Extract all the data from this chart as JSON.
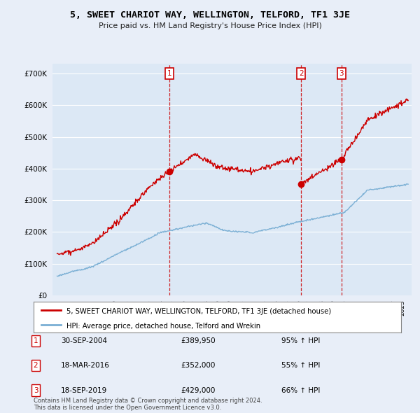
{
  "title": "5, SWEET CHARIOT WAY, WELLINGTON, TELFORD, TF1 3JE",
  "subtitle": "Price paid vs. HM Land Registry's House Price Index (HPI)",
  "ylim": [
    0,
    730000
  ],
  "yticks": [
    0,
    100000,
    200000,
    300000,
    400000,
    500000,
    600000,
    700000
  ],
  "background_color": "#e8eef8",
  "plot_bg_color": "#dce8f5",
  "grid_color": "#ffffff",
  "sale_years_float": [
    2004.75,
    2016.21,
    2019.71
  ],
  "sale_prices": [
    389950,
    352000,
    429000
  ],
  "sale_labels": [
    "1",
    "2",
    "3"
  ],
  "legend_label_red": "5, SWEET CHARIOT WAY, WELLINGTON, TELFORD, TF1 3JE (detached house)",
  "legend_label_blue": "HPI: Average price, detached house, Telford and Wrekin",
  "table_data": [
    [
      "1",
      "30-SEP-2004",
      "£389,950",
      "95% ↑ HPI"
    ],
    [
      "2",
      "18-MAR-2016",
      "£352,000",
      "55% ↑ HPI"
    ],
    [
      "3",
      "18-SEP-2019",
      "£429,000",
      "66% ↑ HPI"
    ]
  ],
  "footnote": "Contains HM Land Registry data © Crown copyright and database right 2024.\nThis data is licensed under the Open Government Licence v3.0.",
  "red_color": "#cc0000",
  "blue_color": "#7aafd4",
  "dashed_color": "#cc0000"
}
